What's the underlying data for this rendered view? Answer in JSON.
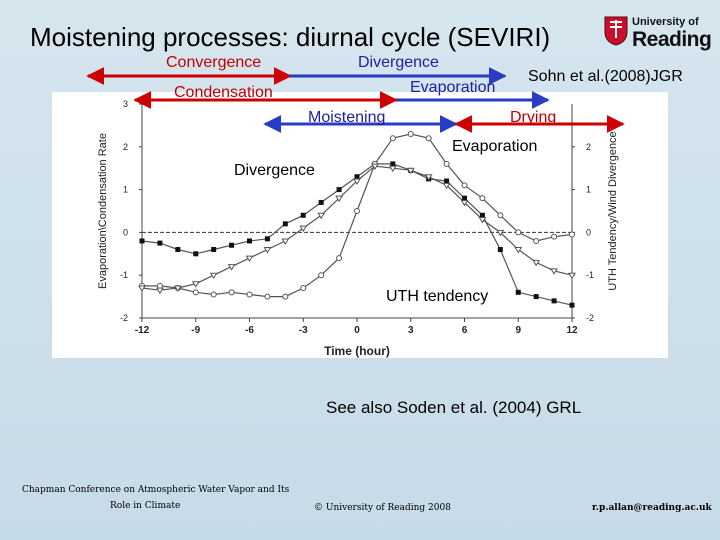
{
  "slide": {
    "title": "Moistening processes: diurnal cycle (SEVIRI)",
    "reference": "Sohn et al.(2008)JGR",
    "see_also": "See also Soden et al. (2004) GRL"
  },
  "logo": {
    "line1": "University of",
    "line2": "Reading"
  },
  "annotations": {
    "convergence": "Convergence",
    "divergence_top": "Divergence",
    "evaporation_top": "Evaporation",
    "condensation": "Condensation",
    "moistening": "Moistening",
    "drying": "Drying",
    "evaporation_mid": "Evaporation",
    "divergence_left": "Divergence",
    "uth_tendency": "UTH tendency"
  },
  "footer": {
    "conference_line1": "Chapman Conference on Atmospheric Water Vapor and Its",
    "conference_line2": "Role in Climate",
    "copyright": "© University of Reading 2008",
    "email": "r.p.allan@reading.ac.uk"
  },
  "colors": {
    "red": "#cc0000",
    "blue": "#2a3cc4"
  },
  "chart_data": {
    "type": "line",
    "xlabel": "Time (hour)",
    "ylabel_left": "Evaporation\\Condensation Rate",
    "ylabel_right": "UTH Tendency/Wind Divergence",
    "xlim": [
      -12,
      12
    ],
    "ylim": [
      -2,
      3
    ],
    "x_ticks": [
      "-12",
      "-9",
      "-6",
      "-3",
      "0",
      "3",
      "6",
      "9",
      "12"
    ],
    "y_ticks_left": [
      "-2",
      "-1",
      "0",
      "1",
      "2",
      "3"
    ],
    "y_ticks_right": [
      "-2",
      "-1",
      "0",
      "1",
      "2"
    ],
    "series": [
      {
        "name": "Evaporation/Condensation rate",
        "marker": "square",
        "x": [
          -12,
          -11,
          -10,
          -9,
          -8,
          -7,
          -6,
          -5,
          -4,
          -3,
          -2,
          -1,
          0,
          1,
          2,
          3,
          4,
          5,
          6,
          7,
          8,
          9,
          10,
          11,
          12
        ],
        "y": [
          -0.2,
          -0.25,
          -0.4,
          -0.5,
          -0.4,
          -0.3,
          -0.2,
          -0.15,
          0.2,
          0.4,
          0.7,
          1.0,
          1.3,
          1.6,
          1.6,
          1.45,
          1.25,
          1.2,
          0.8,
          0.4,
          -0.4,
          -1.4,
          -1.5,
          -1.6,
          -1.7
        ]
      },
      {
        "name": "UTH tendency",
        "marker": "circle",
        "x": [
          -12,
          -11,
          -10,
          -9,
          -8,
          -7,
          -6,
          -5,
          -4,
          -3,
          -2,
          -1,
          0,
          1,
          2,
          3,
          4,
          5,
          6,
          7,
          8,
          9,
          10,
          11,
          12
        ],
        "y": [
          -1.25,
          -1.25,
          -1.3,
          -1.4,
          -1.45,
          -1.4,
          -1.45,
          -1.5,
          -1.5,
          -1.3,
          -1.0,
          -0.6,
          0.5,
          1.6,
          2.2,
          2.3,
          2.2,
          1.6,
          1.1,
          0.8,
          0.4,
          0.0,
          -0.2,
          -0.1,
          -0.05
        ]
      },
      {
        "name": "Wind divergence",
        "marker": "triangle",
        "x": [
          -12,
          -11,
          -10,
          -9,
          -8,
          -7,
          -6,
          -5,
          -4,
          -3,
          -2,
          -1,
          0,
          1,
          2,
          3,
          4,
          5,
          6,
          7,
          8,
          9,
          10,
          11,
          12
        ],
        "y": [
          -1.3,
          -1.35,
          -1.3,
          -1.2,
          -1.0,
          -0.8,
          -0.6,
          -0.4,
          -0.2,
          0.1,
          0.4,
          0.8,
          1.2,
          1.55,
          1.5,
          1.45,
          1.3,
          1.1,
          0.7,
          0.3,
          0.0,
          -0.4,
          -0.7,
          -0.9,
          -1.0
        ]
      }
    ]
  }
}
